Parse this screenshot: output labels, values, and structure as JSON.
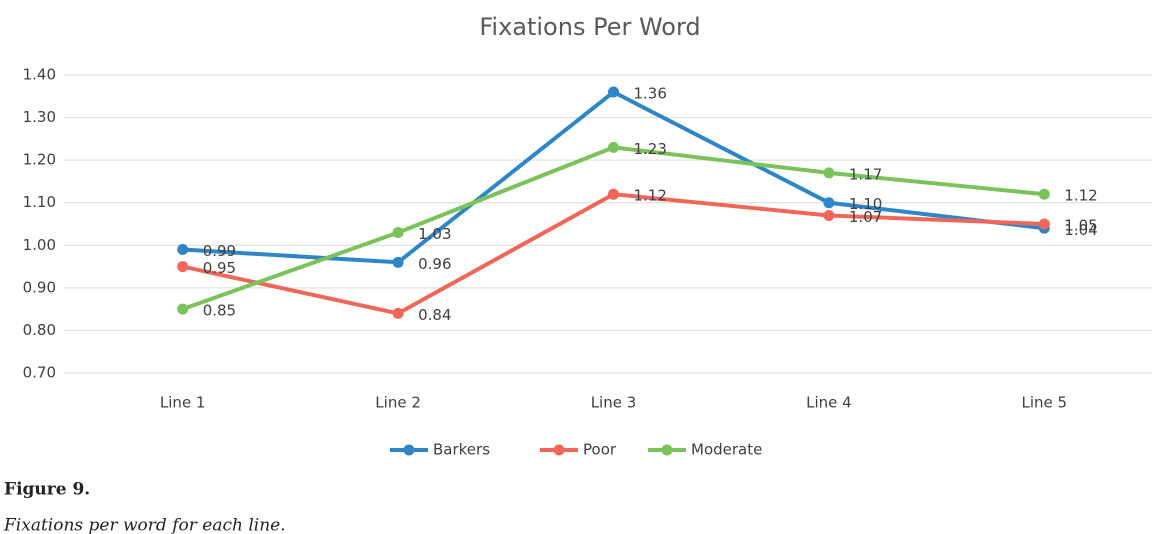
{
  "chart_data": {
    "type": "line",
    "title": "Fixations Per Word",
    "categories": [
      "Line 1",
      "Line 2",
      "Line 3",
      "Line 4",
      "Line 5"
    ],
    "series": [
      {
        "name": "Barkers",
        "color": "#2e86c8",
        "values": [
          0.99,
          0.96,
          1.36,
          1.1,
          1.04
        ],
        "value_labels": [
          "0.99",
          "0.96",
          "1.36",
          "1.10",
          "1.04"
        ]
      },
      {
        "name": "Poor",
        "color": "#f0675a",
        "values": [
          0.95,
          0.84,
          1.12,
          1.07,
          1.05
        ],
        "value_labels": [
          "0.95",
          "0.84",
          "1.12",
          "1.07",
          "1.05"
        ]
      },
      {
        "name": "Moderate",
        "color": "#7ac35a",
        "values": [
          0.85,
          1.03,
          1.23,
          1.17,
          1.12
        ],
        "value_labels": [
          "0.85",
          "1.03",
          "1.23",
          "1.17",
          "1.12"
        ]
      }
    ],
    "ylim": [
      0.7,
      1.4
    ],
    "yticks": [
      {
        "value": 0.7,
        "label": "0.70"
      },
      {
        "value": 0.8,
        "label": "0.80"
      },
      {
        "value": 0.9,
        "label": "0.90"
      },
      {
        "value": 1.0,
        "label": "1.00"
      },
      {
        "value": 1.1,
        "label": "1.10"
      },
      {
        "value": 1.2,
        "label": "1.20"
      },
      {
        "value": 1.3,
        "label": "1.30"
      },
      {
        "value": 1.4,
        "label": "1.40"
      }
    ],
    "grid": true,
    "legend": "bottom"
  },
  "figure": {
    "label": "Figure 9.",
    "caption": "Fixations per word for each line."
  }
}
